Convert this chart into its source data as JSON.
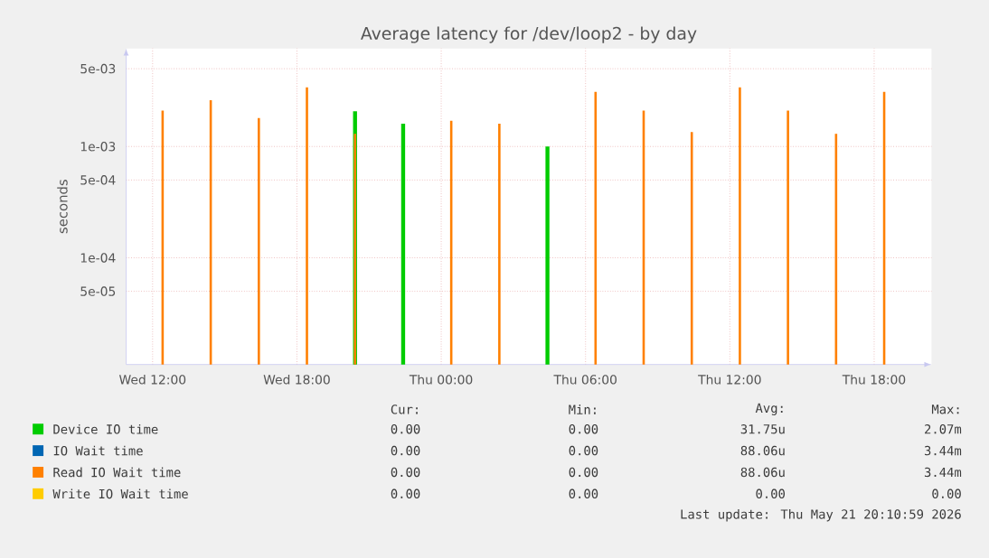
{
  "chart_data": {
    "type": "bar",
    "title": "Average latency for /dev/loop2 - by day",
    "ylabel": "seconds",
    "x": [
      "2026-05-20T12:25",
      "2026-05-20T14:25",
      "2026-05-20T16:25",
      "2026-05-20T18:25",
      "2026-05-20T20:25",
      "2026-05-20T22:25",
      "2026-05-21T00:25",
      "2026-05-21T02:25",
      "2026-05-21T04:25",
      "2026-05-21T06:25",
      "2026-05-21T08:25",
      "2026-05-21T10:25",
      "2026-05-21T12:25",
      "2026-05-21T14:25",
      "2026-05-21T16:25",
      "2026-05-21T18:25"
    ],
    "series": [
      {
        "name": "Device IO time",
        "color": "#00cc00",
        "values": [
          null,
          null,
          null,
          null,
          0.00207,
          0.0016,
          null,
          null,
          0.001,
          null,
          null,
          null,
          null,
          null,
          null,
          null
        ]
      },
      {
        "name": "IO Wait time",
        "color": "#0066b3",
        "values": [
          null,
          null,
          null,
          null,
          null,
          null,
          null,
          null,
          null,
          null,
          null,
          null,
          null,
          null,
          null,
          null
        ]
      },
      {
        "name": "Read IO Wait time",
        "color": "#ff8000",
        "values": [
          0.0021,
          0.0026,
          0.0018,
          0.0034,
          0.0013,
          null,
          0.0017,
          0.0016,
          null,
          0.0031,
          0.0021,
          0.00135,
          0.0034,
          0.0021,
          0.0013,
          0.0031
        ]
      },
      {
        "name": "Write IO Wait time",
        "color": "#ffcc00",
        "values": [
          null,
          null,
          null,
          null,
          null,
          null,
          null,
          null,
          null,
          null,
          null,
          null,
          null,
          null,
          null,
          null
        ]
      }
    ],
    "log": "y",
    "xlim": [
      "2026-05-20T10:54",
      "2026-05-21T20:23"
    ],
    "xticks": [
      {
        "value": "2026-05-20T12:00",
        "label": "Wed 12:00"
      },
      {
        "value": "2026-05-20T18:00",
        "label": "Wed 18:00"
      },
      {
        "value": "2026-05-21T00:00",
        "label": "Thu 00:00"
      },
      {
        "value": "2026-05-21T06:00",
        "label": "Thu 06:00"
      },
      {
        "value": "2026-05-21T12:00",
        "label": "Thu 12:00"
      },
      {
        "value": "2026-05-21T18:00",
        "label": "Thu 18:00"
      }
    ],
    "ylim": [
      1.1e-05,
      0.0076
    ],
    "yticks": [
      {
        "value": 5e-05,
        "label": "5e-05"
      },
      {
        "value": 0.0001,
        "label": "1e-04"
      },
      {
        "value": 0.0005,
        "label": "5e-04"
      },
      {
        "value": 0.001,
        "label": "1e-03"
      },
      {
        "value": 0.005,
        "label": "5e-03"
      }
    ],
    "grid": true,
    "legend": "bottom",
    "annotations": [
      "Cur:",
      "Min:",
      "Avg:",
      "Max:",
      "0.00",
      "0.00",
      "31.75u",
      "2.07m",
      "0.00",
      "0.00",
      "88.06u",
      "3.44m",
      "0.00",
      "0.00",
      "88.06u",
      "3.44m",
      "0.00",
      "0.00",
      "0.00",
      "0.00",
      "Last update: Thu May 21 20:10:59 2026"
    ]
  }
}
